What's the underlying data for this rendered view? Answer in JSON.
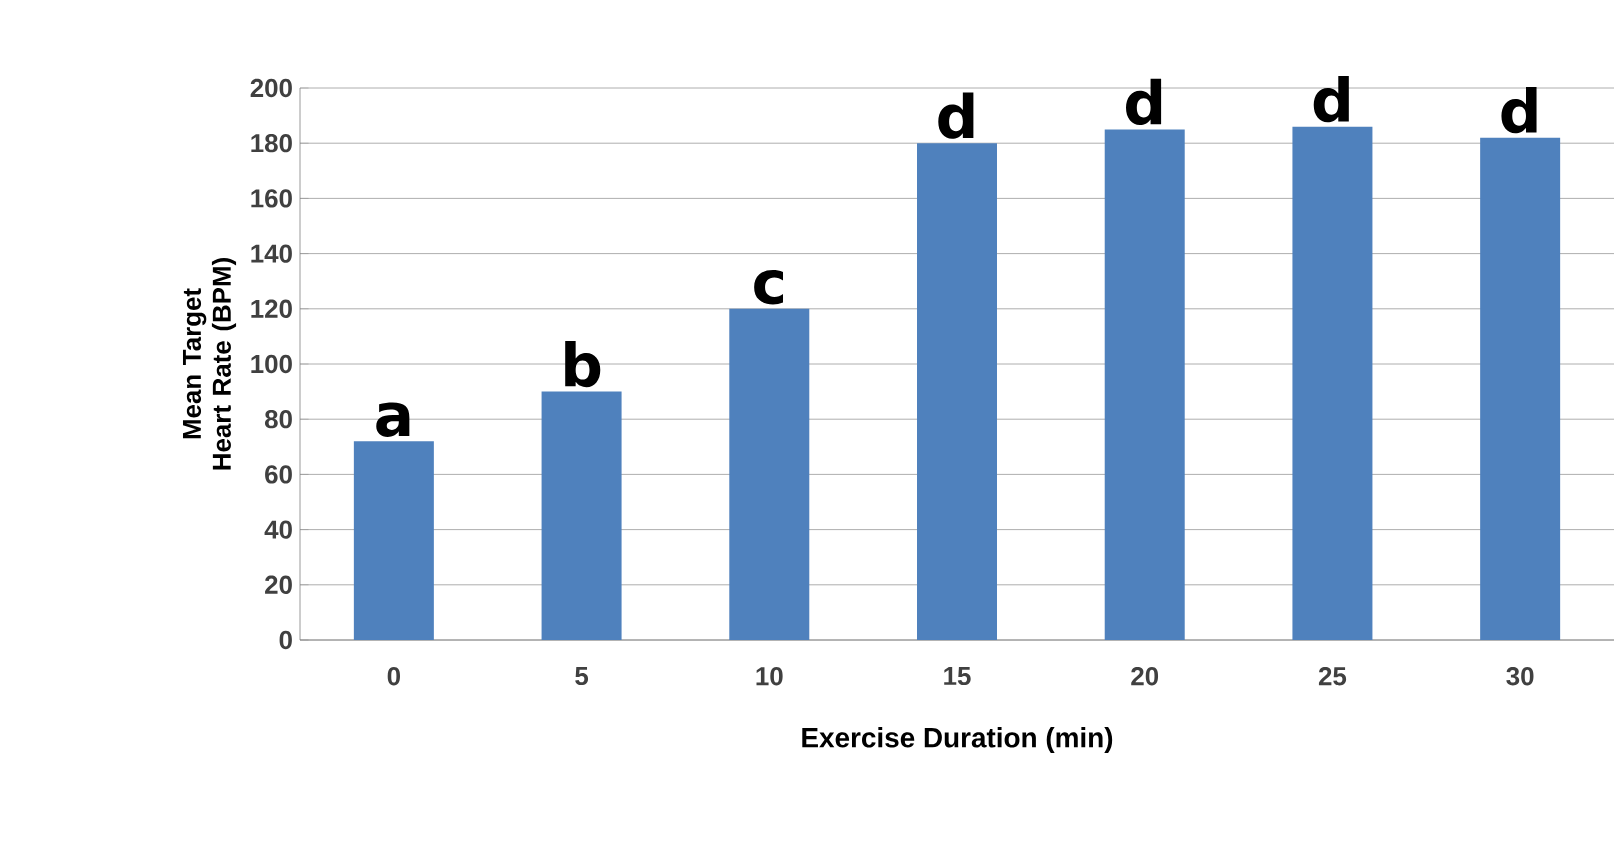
{
  "chart_data": {
    "type": "bar",
    "xlabel": "Exercise Duration (min)",
    "ylabel": "Mean Target Heart Rate (BPM)",
    "categories": [
      "0",
      "5",
      "10",
      "15",
      "20",
      "25",
      "30"
    ],
    "values": [
      72,
      90,
      120,
      180,
      185,
      186,
      182
    ],
    "color": "#4f81bd",
    "ylim": [
      0,
      200
    ],
    "yticks": [
      0,
      20,
      40,
      60,
      80,
      100,
      120,
      140,
      160,
      180,
      200
    ],
    "grid": "y",
    "annotations": [
      {
        "text": "a",
        "x": "0",
        "y": 72
      },
      {
        "text": "b",
        "x": "5",
        "y": 90
      },
      {
        "text": "c",
        "x": "10",
        "y": 120
      },
      {
        "text": "d",
        "x": "15",
        "y": 180
      },
      {
        "text": "d",
        "x": "20",
        "y": 185
      },
      {
        "text": "d",
        "x": "25",
        "y": 186
      },
      {
        "text": "d",
        "x": "30",
        "y": 182
      }
    ]
  }
}
